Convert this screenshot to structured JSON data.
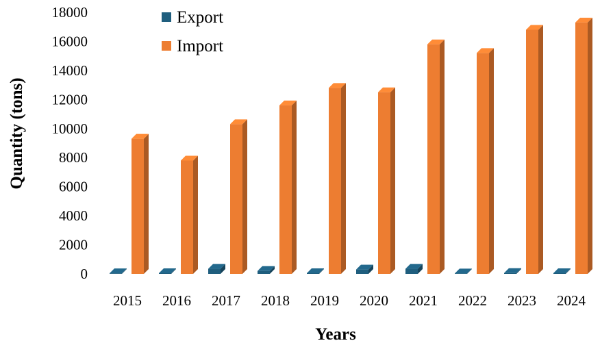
{
  "chart_data": {
    "type": "bar",
    "title": "",
    "xlabel": "Years",
    "ylabel": "Quantity (tons)",
    "categories": [
      "2015",
      "2016",
      "2017",
      "2018",
      "2019",
      "2020",
      "2021",
      "2022",
      "2023",
      "2024"
    ],
    "series": [
      {
        "name": "Export",
        "color": "#1f5e7e",
        "values": [
          40,
          50,
          350,
          200,
          50,
          300,
          350,
          30,
          60,
          50
        ]
      },
      {
        "name": "Import",
        "color": "#ed7d31",
        "values": [
          9300,
          7800,
          10300,
          11600,
          12800,
          12500,
          15800,
          15200,
          16800,
          17300
        ]
      }
    ],
    "ylim": [
      0,
      18000
    ],
    "yticks": [
      0,
      2000,
      4000,
      6000,
      8000,
      10000,
      12000,
      14000,
      16000,
      18000
    ],
    "grid": false,
    "legend": "top-left",
    "style": "3d-column"
  }
}
